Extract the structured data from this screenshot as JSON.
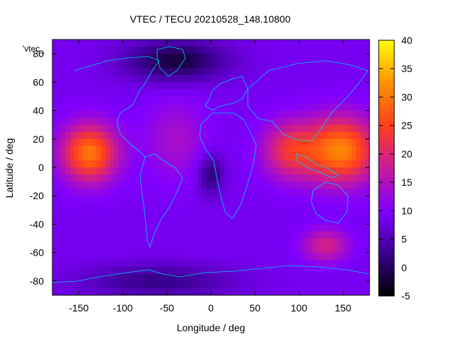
{
  "chart_data": {
    "type": "heatmap",
    "title": "VTEC / TECU 20210528_148.10800",
    "xlabel": "Longitude / deg",
    "ylabel": "Latitude / deg",
    "key_label": "'vtec_",
    "xlim": [
      -180,
      180
    ],
    "ylim": [
      -90,
      90
    ],
    "xticks": [
      -150,
      -100,
      -50,
      0,
      50,
      100,
      150
    ],
    "yticks": [
      -80,
      -60,
      -40,
      -20,
      0,
      20,
      40,
      60,
      80
    ],
    "colorbar": {
      "min": -5,
      "max": 40,
      "ticks": [
        -5,
        0,
        5,
        10,
        15,
        20,
        25,
        30,
        35,
        40
      ],
      "palette": [
        "#000000",
        "#3a0090",
        "#8000ff",
        "#c81a9a",
        "#ff3f1c",
        "#ff9200",
        "#ffff00"
      ]
    },
    "grid_resolution_deg": 5,
    "background_vtec": 9,
    "features": [
      {
        "name": "pacific-equatorial-max",
        "lon": -138,
        "lat": 10,
        "peak": 30,
        "lon_spread": 22,
        "lat_spread": 14
      },
      {
        "name": "asia-equatorial-max",
        "lon": 148,
        "lat": 12,
        "peak": 31,
        "lon_spread": 28,
        "lat_spread": 16
      },
      {
        "name": "india-ocean-anomaly",
        "lon": 90,
        "lat": 12,
        "peak": 22,
        "lon_spread": 22,
        "lat_spread": 14
      },
      {
        "name": "south-pacific-high",
        "lon": 130,
        "lat": -55,
        "peak": 19,
        "lon_spread": 18,
        "lat_spread": 8
      },
      {
        "name": "arctic-depression",
        "lon": -40,
        "lat": 75,
        "peak": -2,
        "lon_spread": 40,
        "lat_spread": 10
      },
      {
        "name": "africa-depression",
        "lon": 0,
        "lat": -5,
        "peak": 1,
        "lon_spread": 10,
        "lat_spread": 10
      },
      {
        "name": "antarctic-depression",
        "lon": -60,
        "lat": -80,
        "peak": 2,
        "lon_spread": 60,
        "lat_spread": 8
      },
      {
        "name": "atlantic-band",
        "lon": -40,
        "lat": 20,
        "peak": 14,
        "lon_spread": 25,
        "lat_spread": 20
      }
    ]
  }
}
